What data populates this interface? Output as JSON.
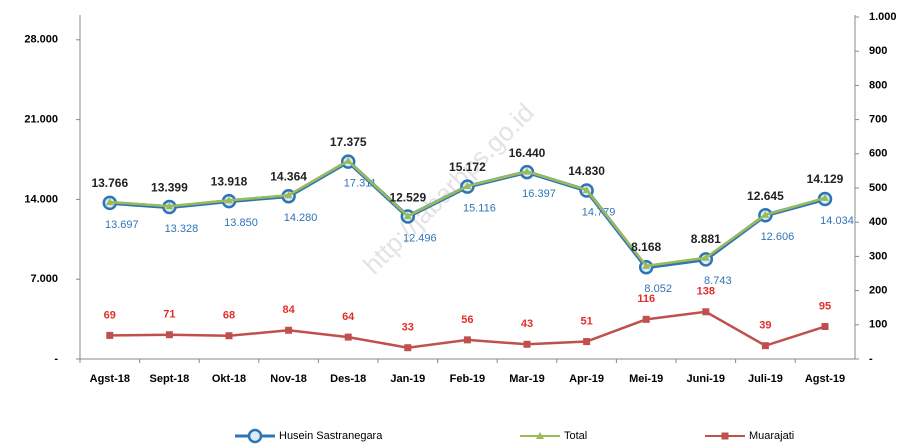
{
  "chart_data": {
    "type": "line",
    "watermark": "http://jabarbps.go.id",
    "categories": [
      "Agst-18",
      "Sept-18",
      "Okt-18",
      "Nov-18",
      "Des-18",
      "Jan-19",
      "Feb-19",
      "Mar-19",
      "Apr-19",
      "Mei-19",
      "Juni-19",
      "Juli-19",
      "Agst-19"
    ],
    "series": [
      {
        "name": "Husein Sastranegara",
        "color": "#2e75b6",
        "marker": "circle",
        "values": [
          13697,
          13328,
          13850,
          14280,
          17311,
          12496,
          15116,
          16397,
          14779,
          8052,
          8743,
          12606,
          14034
        ],
        "value_labels": [
          "13.697",
          "13.328",
          "13.850",
          "14.280",
          "17.311",
          "12.496",
          "15.116",
          "16.397",
          "14.779",
          "8.052",
          "8.743",
          "12.606",
          "14.034"
        ]
      },
      {
        "name": "Total",
        "color": "#9bbb59",
        "marker": "triangle",
        "values": [
          13766,
          13399,
          13918,
          14364,
          17375,
          12529,
          15172,
          16440,
          14830,
          8168,
          8881,
          12645,
          14129
        ],
        "value_labels": [
          "13.766",
          "13.399",
          "13.918",
          "14.364",
          "17.375",
          "12.529",
          "15.172",
          "16.440",
          "14.830",
          "8.168",
          "8.881",
          "12.645",
          "14.129"
        ]
      },
      {
        "name": "Muarajati",
        "color": "#c0504d",
        "marker": "square",
        "axis": "y2",
        "values": [
          69,
          71,
          68,
          84,
          64,
          33,
          56,
          43,
          51,
          116,
          138,
          39,
          95
        ]
      }
    ],
    "ylim": [
      0,
      30000
    ],
    "yticks": [
      {
        "value": 0,
        "label": "-"
      },
      {
        "value": 7000,
        "label": "7.000"
      },
      {
        "value": 14000,
        "label": "14.000"
      },
      {
        "value": 21000,
        "label": "21.000"
      },
      {
        "value": 28000,
        "label": "28.000"
      }
    ],
    "y2lim": [
      0,
      1000
    ],
    "y2ticks": [
      {
        "value": 0,
        "label": "-"
      },
      100,
      200,
      300,
      400,
      500,
      600,
      700,
      800,
      900,
      {
        "value": 1000,
        "label": "1.000"
      }
    ],
    "legend": "bottom"
  }
}
